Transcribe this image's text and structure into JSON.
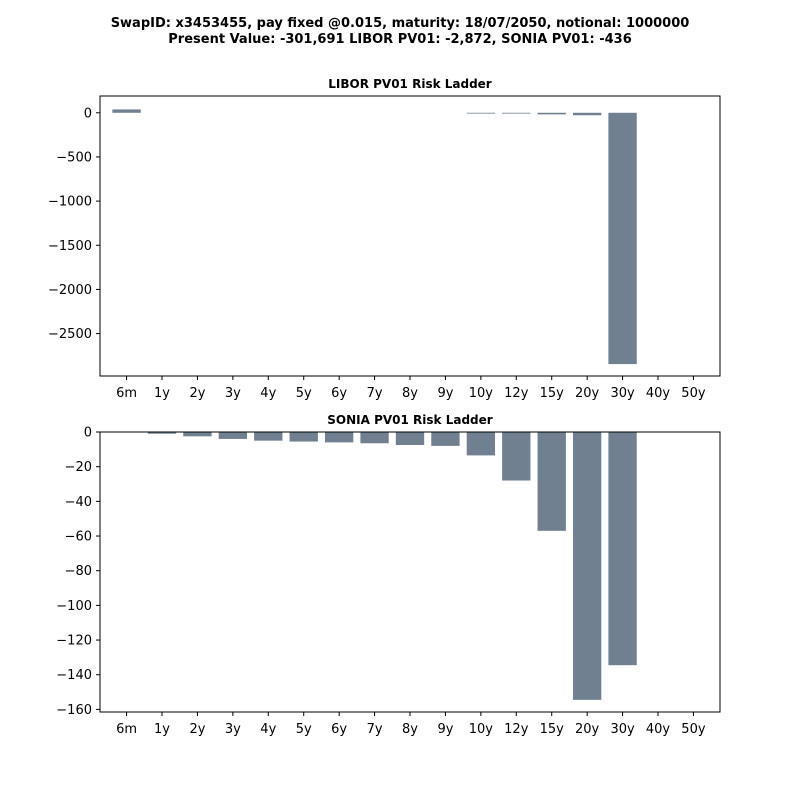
{
  "figure": {
    "title_line1": "SwapID: x3453455, pay fixed @0.015, maturity: 18/07/2050, notional: 1000000",
    "title_line2": "Present Value: -301,691 LIBOR PV01: -2,872, SONIA PV01: -436"
  },
  "colors": {
    "bar": "#708090",
    "axis": "#000000",
    "background": "#ffffff"
  },
  "chart_data": [
    {
      "type": "bar",
      "title": "LIBOR PV01 Risk Ladder",
      "xlabel": "",
      "ylabel": "",
      "grid": false,
      "categories": [
        "6m",
        "1y",
        "2y",
        "3y",
        "4y",
        "5y",
        "6y",
        "7y",
        "8y",
        "9y",
        "10y",
        "12y",
        "15y",
        "20y",
        "30y",
        "40y",
        "50y"
      ],
      "values": [
        38,
        0,
        0,
        0,
        0,
        0,
        0,
        0,
        0,
        0,
        -5,
        -8,
        -18,
        -28,
        -2845,
        0,
        0
      ],
      "ylim": [
        -2980,
        190
      ],
      "yticks": [
        0,
        -500,
        -1000,
        -1500,
        -2000,
        -2500
      ]
    },
    {
      "type": "bar",
      "title": "SONIA PV01 Risk Ladder",
      "xlabel": "",
      "ylabel": "",
      "grid": false,
      "categories": [
        "6m",
        "1y",
        "2y",
        "3y",
        "4y",
        "5y",
        "6y",
        "7y",
        "8y",
        "9y",
        "10y",
        "12y",
        "15y",
        "20y",
        "30y",
        "40y",
        "50y"
      ],
      "values": [
        0,
        -1,
        -2.5,
        -4,
        -5,
        -5.5,
        -6,
        -6.5,
        -7.5,
        -8,
        -13.5,
        -28,
        -57,
        -154.5,
        -134.5,
        0,
        0
      ],
      "ylim": [
        -161.5,
        0
      ],
      "yticks": [
        0,
        -20,
        -40,
        -60,
        -80,
        -100,
        -120,
        -140,
        -160
      ]
    }
  ]
}
